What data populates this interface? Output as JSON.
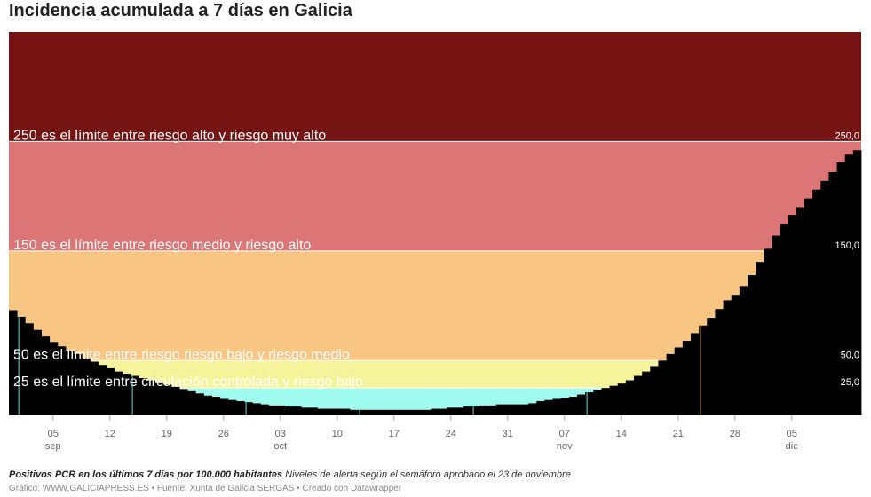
{
  "title": "Incidencia acumulada a 7 días en Galicia",
  "notes": {
    "label_bold": "Positivos PCR en los últimos 7 días por 100.000 habitantes",
    "label_rest": "Niveles de alerta según el semáforo aprobado el 23 de noviembre"
  },
  "credits": {
    "grafico": "Gráfico: WWW.GALICIAPRESS.ES",
    "sep1": " • ",
    "fuente": "Fuente: Xunta de Galicia SERGAS",
    "sep2": " • ",
    "creado": "Creado con Datawrapper"
  },
  "chart_data": {
    "type": "area",
    "ylim": [
      0,
      350
    ],
    "xlim": [
      "2020-08-31",
      "2020-12-14"
    ],
    "x_tick_labels": [
      {
        "date": "2020-09-05",
        "day": "05",
        "month": "sep"
      },
      {
        "date": "2020-09-12",
        "day": "12",
        "month": ""
      },
      {
        "date": "2020-09-19",
        "day": "19",
        "month": ""
      },
      {
        "date": "2020-09-26",
        "day": "26",
        "month": ""
      },
      {
        "date": "2020-10-03",
        "day": "03",
        "month": "oct"
      },
      {
        "date": "2020-10-10",
        "day": "10",
        "month": ""
      },
      {
        "date": "2020-10-17",
        "day": "17",
        "month": ""
      },
      {
        "date": "2020-10-24",
        "day": "24",
        "month": ""
      },
      {
        "date": "2020-10-31",
        "day": "31",
        "month": ""
      },
      {
        "date": "2020-11-07",
        "day": "07",
        "month": "nov"
      },
      {
        "date": "2020-11-14",
        "day": "14",
        "month": ""
      },
      {
        "date": "2020-11-21",
        "day": "21",
        "month": ""
      },
      {
        "date": "2020-11-28",
        "day": "28",
        "month": ""
      },
      {
        "date": "2020-12-05",
        "day": "05",
        "month": "dic"
      }
    ],
    "bands": [
      {
        "from": 0,
        "to": 25,
        "color": "#9ffaf0",
        "tick": "25,0",
        "label": "25 es el límite entre circulación controlada y riesgo bajo"
      },
      {
        "from": 25,
        "to": 50,
        "color": "#f6f49a",
        "tick": "50,0",
        "label": "50 es el límite entre riesgo riesgo bajo y riesgo medio"
      },
      {
        "from": 50,
        "to": 150,
        "color": "#f8c682",
        "tick": "150,0",
        "label": "150 es el límite entre riesgo medio y riesgo alto"
      },
      {
        "from": 150,
        "to": 250,
        "color": "#dc7575",
        "tick": "250,0",
        "label": "250 es el límite entre riesgo alto y riesgo muy alto"
      },
      {
        "from": 250,
        "to": 350,
        "color": "#761414",
        "tick": "",
        "label": ""
      }
    ],
    "series": [
      {
        "color": "#000000",
        "points": [
          [
            "2020-08-31",
            96
          ],
          [
            "2020-09-01",
            90
          ],
          [
            "2020-09-02",
            84
          ],
          [
            "2020-09-03",
            78
          ],
          [
            "2020-09-04",
            72
          ],
          [
            "2020-09-05",
            67
          ],
          [
            "2020-09-06",
            63
          ],
          [
            "2020-09-07",
            59
          ],
          [
            "2020-09-08",
            56
          ],
          [
            "2020-09-09",
            52
          ],
          [
            "2020-09-10",
            49
          ],
          [
            "2020-09-11",
            46
          ],
          [
            "2020-09-12",
            43
          ],
          [
            "2020-09-13",
            40
          ],
          [
            "2020-09-14",
            38
          ],
          [
            "2020-09-15",
            36
          ],
          [
            "2020-09-16",
            34
          ],
          [
            "2020-09-17",
            32
          ],
          [
            "2020-09-18",
            30
          ],
          [
            "2020-09-19",
            28
          ],
          [
            "2020-09-20",
            26
          ],
          [
            "2020-09-21",
            24
          ],
          [
            "2020-09-22",
            22
          ],
          [
            "2020-09-23",
            20
          ],
          [
            "2020-09-24",
            18
          ],
          [
            "2020-09-25",
            17
          ],
          [
            "2020-09-26",
            15
          ],
          [
            "2020-09-27",
            14
          ],
          [
            "2020-09-28",
            13
          ],
          [
            "2020-09-29",
            12
          ],
          [
            "2020-09-30",
            11
          ],
          [
            "2020-10-01",
            10
          ],
          [
            "2020-10-02",
            9
          ],
          [
            "2020-10-03",
            9
          ],
          [
            "2020-10-04",
            8
          ],
          [
            "2020-10-05",
            8
          ],
          [
            "2020-10-06",
            7
          ],
          [
            "2020-10-07",
            7
          ],
          [
            "2020-10-08",
            6
          ],
          [
            "2020-10-09",
            6
          ],
          [
            "2020-10-10",
            6
          ],
          [
            "2020-10-11",
            6
          ],
          [
            "2020-10-12",
            5
          ],
          [
            "2020-10-13",
            5
          ],
          [
            "2020-10-14",
            5
          ],
          [
            "2020-10-15",
            5
          ],
          [
            "2020-10-16",
            5
          ],
          [
            "2020-10-17",
            5
          ],
          [
            "2020-10-18",
            5
          ],
          [
            "2020-10-19",
            5
          ],
          [
            "2020-10-20",
            5
          ],
          [
            "2020-10-21",
            5
          ],
          [
            "2020-10-22",
            6
          ],
          [
            "2020-10-23",
            6
          ],
          [
            "2020-10-24",
            7
          ],
          [
            "2020-10-25",
            7
          ],
          [
            "2020-10-26",
            8
          ],
          [
            "2020-10-27",
            8
          ],
          [
            "2020-10-28",
            9
          ],
          [
            "2020-10-29",
            9
          ],
          [
            "2020-10-30",
            10
          ],
          [
            "2020-10-31",
            10
          ],
          [
            "2020-11-01",
            10
          ],
          [
            "2020-11-02",
            10
          ],
          [
            "2020-11-03",
            11
          ],
          [
            "2020-11-04",
            13
          ],
          [
            "2020-11-05",
            14
          ],
          [
            "2020-11-06",
            15
          ],
          [
            "2020-11-07",
            16
          ],
          [
            "2020-11-08",
            17
          ],
          [
            "2020-11-09",
            19
          ],
          [
            "2020-11-10",
            21
          ],
          [
            "2020-11-11",
            23
          ],
          [
            "2020-11-12",
            25
          ],
          [
            "2020-11-13",
            27
          ],
          [
            "2020-11-14",
            29
          ],
          [
            "2020-11-15",
            32
          ],
          [
            "2020-11-16",
            36
          ],
          [
            "2020-11-17",
            40
          ],
          [
            "2020-11-18",
            45
          ],
          [
            "2020-11-19",
            50
          ],
          [
            "2020-11-20",
            56
          ],
          [
            "2020-11-21",
            62
          ],
          [
            "2020-11-22",
            68
          ],
          [
            "2020-11-23",
            75
          ],
          [
            "2020-11-24",
            82
          ],
          [
            "2020-11-25",
            89
          ],
          [
            "2020-11-26",
            97
          ],
          [
            "2020-11-27",
            105
          ],
          [
            "2020-11-28",
            110
          ],
          [
            "2020-11-29",
            118
          ],
          [
            "2020-11-30",
            128
          ],
          [
            "2020-12-01",
            140
          ],
          [
            "2020-12-02",
            152
          ],
          [
            "2020-12-03",
            164
          ],
          [
            "2020-12-04",
            175
          ],
          [
            "2020-12-05",
            183
          ],
          [
            "2020-12-06",
            190
          ],
          [
            "2020-12-07",
            198
          ],
          [
            "2020-12-08",
            206
          ],
          [
            "2020-12-09",
            214
          ],
          [
            "2020-12-10",
            222
          ],
          [
            "2020-12-11",
            231
          ],
          [
            "2020-12-12",
            238
          ],
          [
            "2020-12-13",
            242
          ]
        ]
      }
    ],
    "markers": [
      {
        "date": "2020-09-01",
        "color": "#4a8f8a"
      },
      {
        "date": "2020-09-15",
        "color": "#4a8f8a"
      },
      {
        "date": "2020-09-29",
        "color": "#4a8f8a"
      },
      {
        "date": "2020-10-13",
        "color": "#4a8f8a"
      },
      {
        "date": "2020-10-27",
        "color": "#4a8f8a"
      },
      {
        "date": "2020-11-10",
        "color": "#4a8f8a"
      },
      {
        "date": "2020-11-24",
        "color": "#8a6a2a"
      }
    ]
  }
}
